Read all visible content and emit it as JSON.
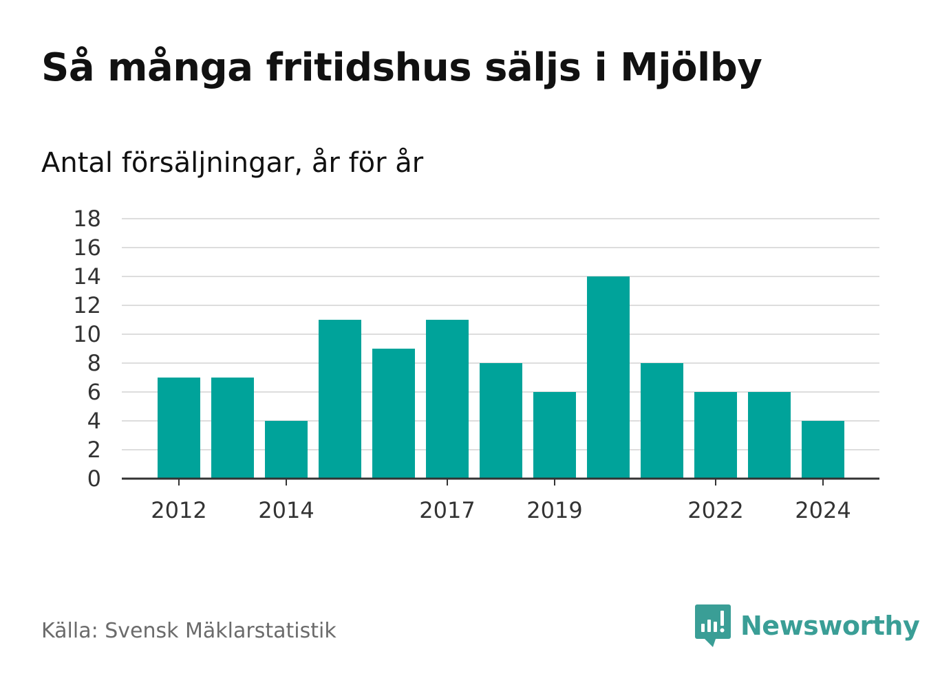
{
  "title": "Så många fritidshus säljs i Mjölby",
  "subtitle": "Antal försäljningar, år för år",
  "source": "Källa: Svensk Mäklarstatistik",
  "brand": {
    "name": "Newsworthy",
    "logo_icon": "newsworthy-logo-icon",
    "color": "#3a9e96"
  },
  "chart_data": {
    "type": "bar",
    "categories": [
      2012,
      2013,
      2014,
      2015,
      2016,
      2017,
      2018,
      2019,
      2020,
      2021,
      2022,
      2023,
      2024
    ],
    "values": [
      7,
      7,
      4,
      11,
      9,
      11,
      8,
      6,
      14,
      8,
      6,
      6,
      4
    ],
    "x_tick_labels": [
      "2012",
      "2014",
      "2017",
      "2019",
      "2022",
      "2024"
    ],
    "y_ticks": [
      0,
      2,
      4,
      6,
      8,
      10,
      12,
      14,
      16,
      18
    ],
    "ylim": [
      0,
      18
    ],
    "grid": true,
    "bar_color": "#00a39a",
    "grid_color": "#dddddd",
    "axis_color": "#333333"
  }
}
